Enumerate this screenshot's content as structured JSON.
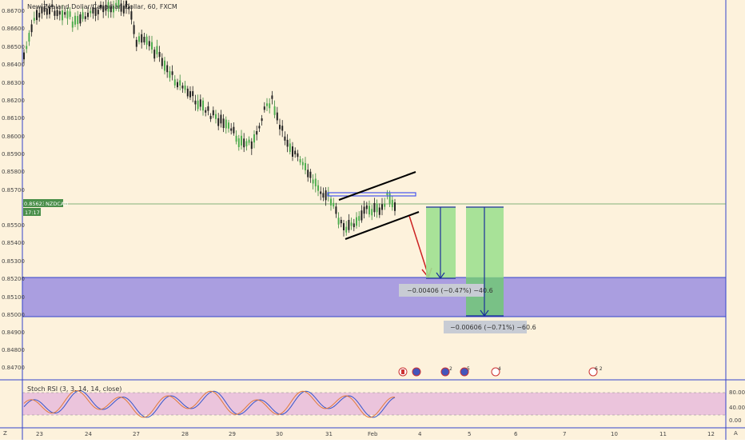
{
  "chart": {
    "title": "New Zealand Dollar/Canadian Dollar, 60, FXCM",
    "symbol_tag": "NZDCAD",
    "last_price": "0.85623",
    "countdown": "17:17",
    "price_ticks": [
      "0.86700",
      "0.86600",
      "0.86500",
      "0.86400",
      "0.86300",
      "0.86200",
      "0.86100",
      "0.86000",
      "0.85900",
      "0.85800",
      "0.85700",
      "0.85500",
      "0.85400",
      "0.85300",
      "0.85200",
      "0.85100",
      "0.85000",
      "0.84900",
      "0.84800",
      "0.84700"
    ],
    "date_ticks": [
      "23",
      "24",
      "27",
      "28",
      "29",
      "30",
      "31",
      "Feb",
      "4",
      "5",
      "6",
      "7",
      "10",
      "11",
      "12"
    ],
    "measure_1": "−0.00406 (−0.47%) −40.6",
    "measure_2": "−0.00606 (−0.71%) −60.6",
    "event_badges": [
      "2",
      "5",
      "4",
      "6 2"
    ],
    "colors": {
      "background": "#fdf2dc",
      "zone": "#9b8fe0",
      "target_box": "#9fe090",
      "arrow_red": "#cc2222",
      "trend_line": "#000000",
      "resistance_line": "#4455ee",
      "price_line": "#5a9e5a"
    }
  },
  "oscillator": {
    "label": "Stoch RSI (3, 3, 14, 14, close)",
    "ticks": [
      "80.00",
      "40.00",
      "0.00"
    ]
  },
  "corner": {
    "left": "Z",
    "right": "A"
  }
}
